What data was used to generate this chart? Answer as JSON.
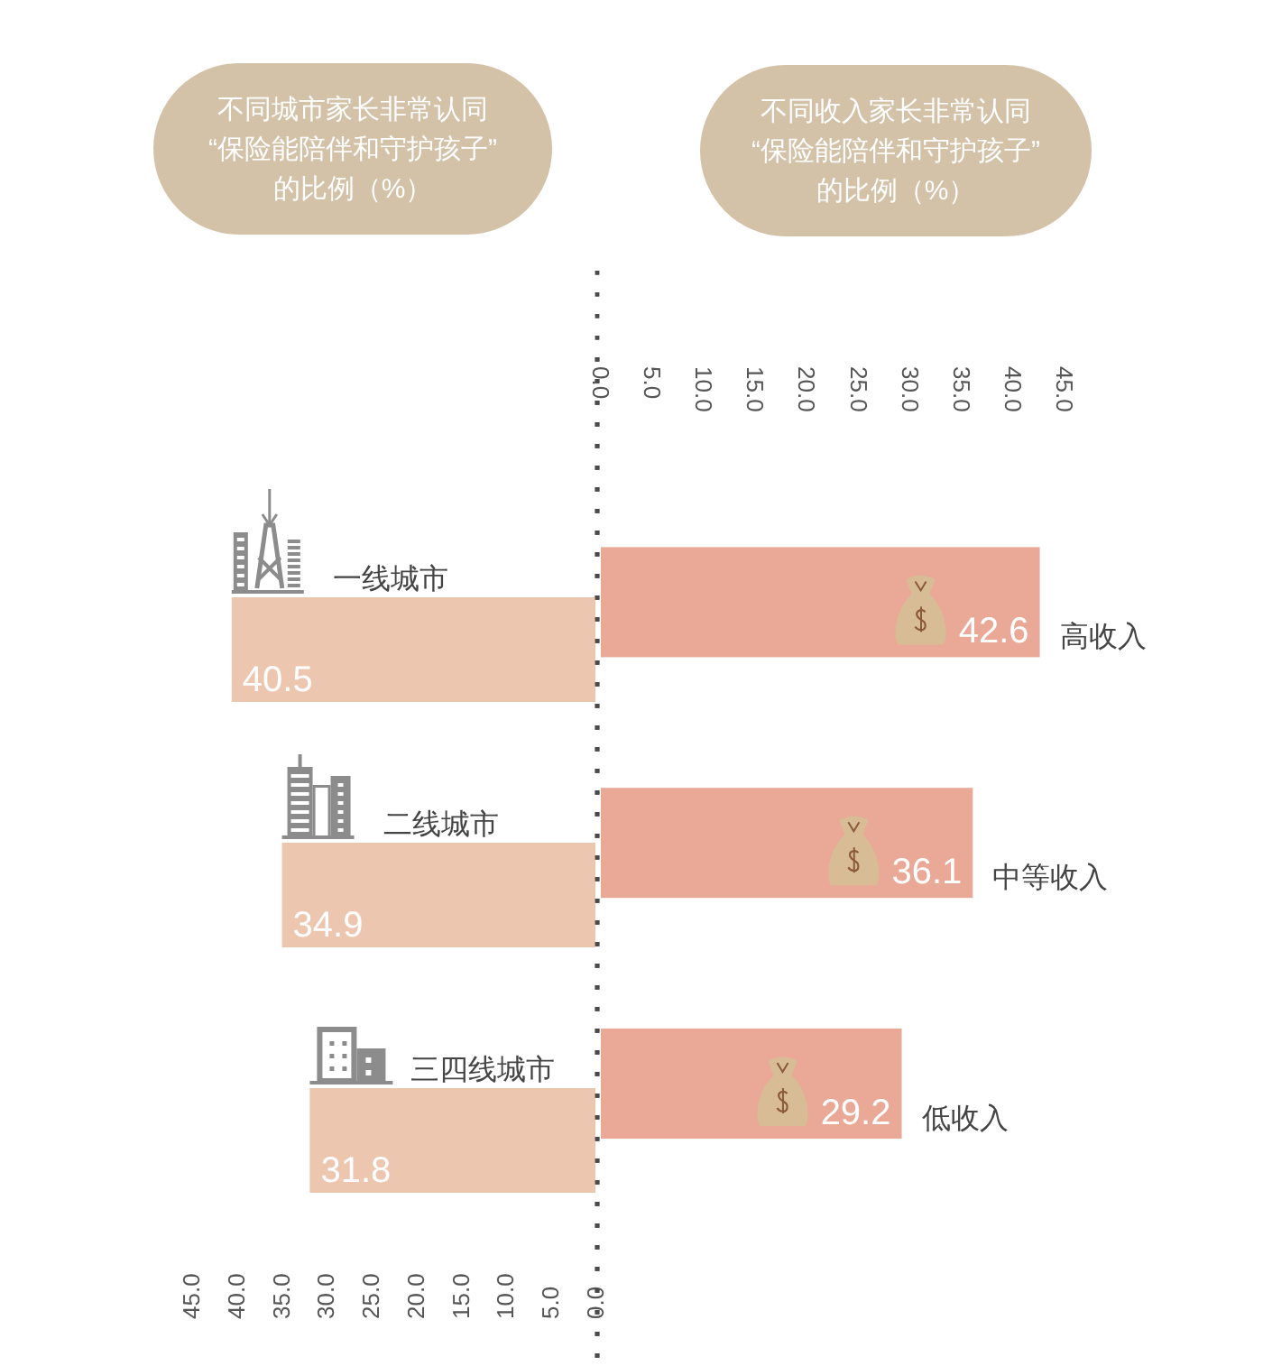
{
  "chart_data": [
    {
      "type": "bar",
      "orientation": "horizontal",
      "title": "不同城市家长非常认同\n“保险能陪伴和守护孩子”\n的比例（%）",
      "categories": [
        "一线城市",
        "二线城市",
        "三四线城市"
      ],
      "values": [
        40.5,
        34.9,
        31.8
      ],
      "color": "#edc6b0",
      "xlim": [
        45,
        0
      ],
      "xticks": [
        {
          "value": 0,
          "label": "0.0"
        },
        {
          "value": 5,
          "label": "5.0"
        },
        {
          "value": 10,
          "label": "10.0"
        },
        {
          "value": 15,
          "label": "15.0"
        },
        {
          "value": 20,
          "label": "20.0"
        },
        {
          "value": 25,
          "label": "25.0"
        },
        {
          "value": 30,
          "label": "30.0"
        },
        {
          "value": 35,
          "label": "35.0"
        },
        {
          "value": 40,
          "label": "40.0"
        },
        {
          "value": 45,
          "label": "45.0"
        }
      ],
      "data_labels": true
    },
    {
      "type": "bar",
      "orientation": "horizontal",
      "title": "不同收入家长非常认同\n“保险能陪伴和守护孩子”\n的比例（%）",
      "categories": [
        "高收入",
        "中等收入",
        "低收入"
      ],
      "values": [
        42.6,
        36.1,
        29.2
      ],
      "color": "#e9a996",
      "xlim": [
        0,
        45
      ],
      "xticks": [
        {
          "value": 0,
          "label": "0.0"
        },
        {
          "value": 5,
          "label": "5.0"
        },
        {
          "value": 10,
          "label": "10.0"
        },
        {
          "value": 15,
          "label": "15.0"
        },
        {
          "value": 20,
          "label": "20.0"
        },
        {
          "value": 25,
          "label": "25.0"
        },
        {
          "value": 30,
          "label": "30.0"
        },
        {
          "value": 35,
          "label": "35.0"
        },
        {
          "value": 40,
          "label": "40.0"
        },
        {
          "value": 45,
          "label": "45.0"
        }
      ],
      "data_labels": true
    }
  ]
}
